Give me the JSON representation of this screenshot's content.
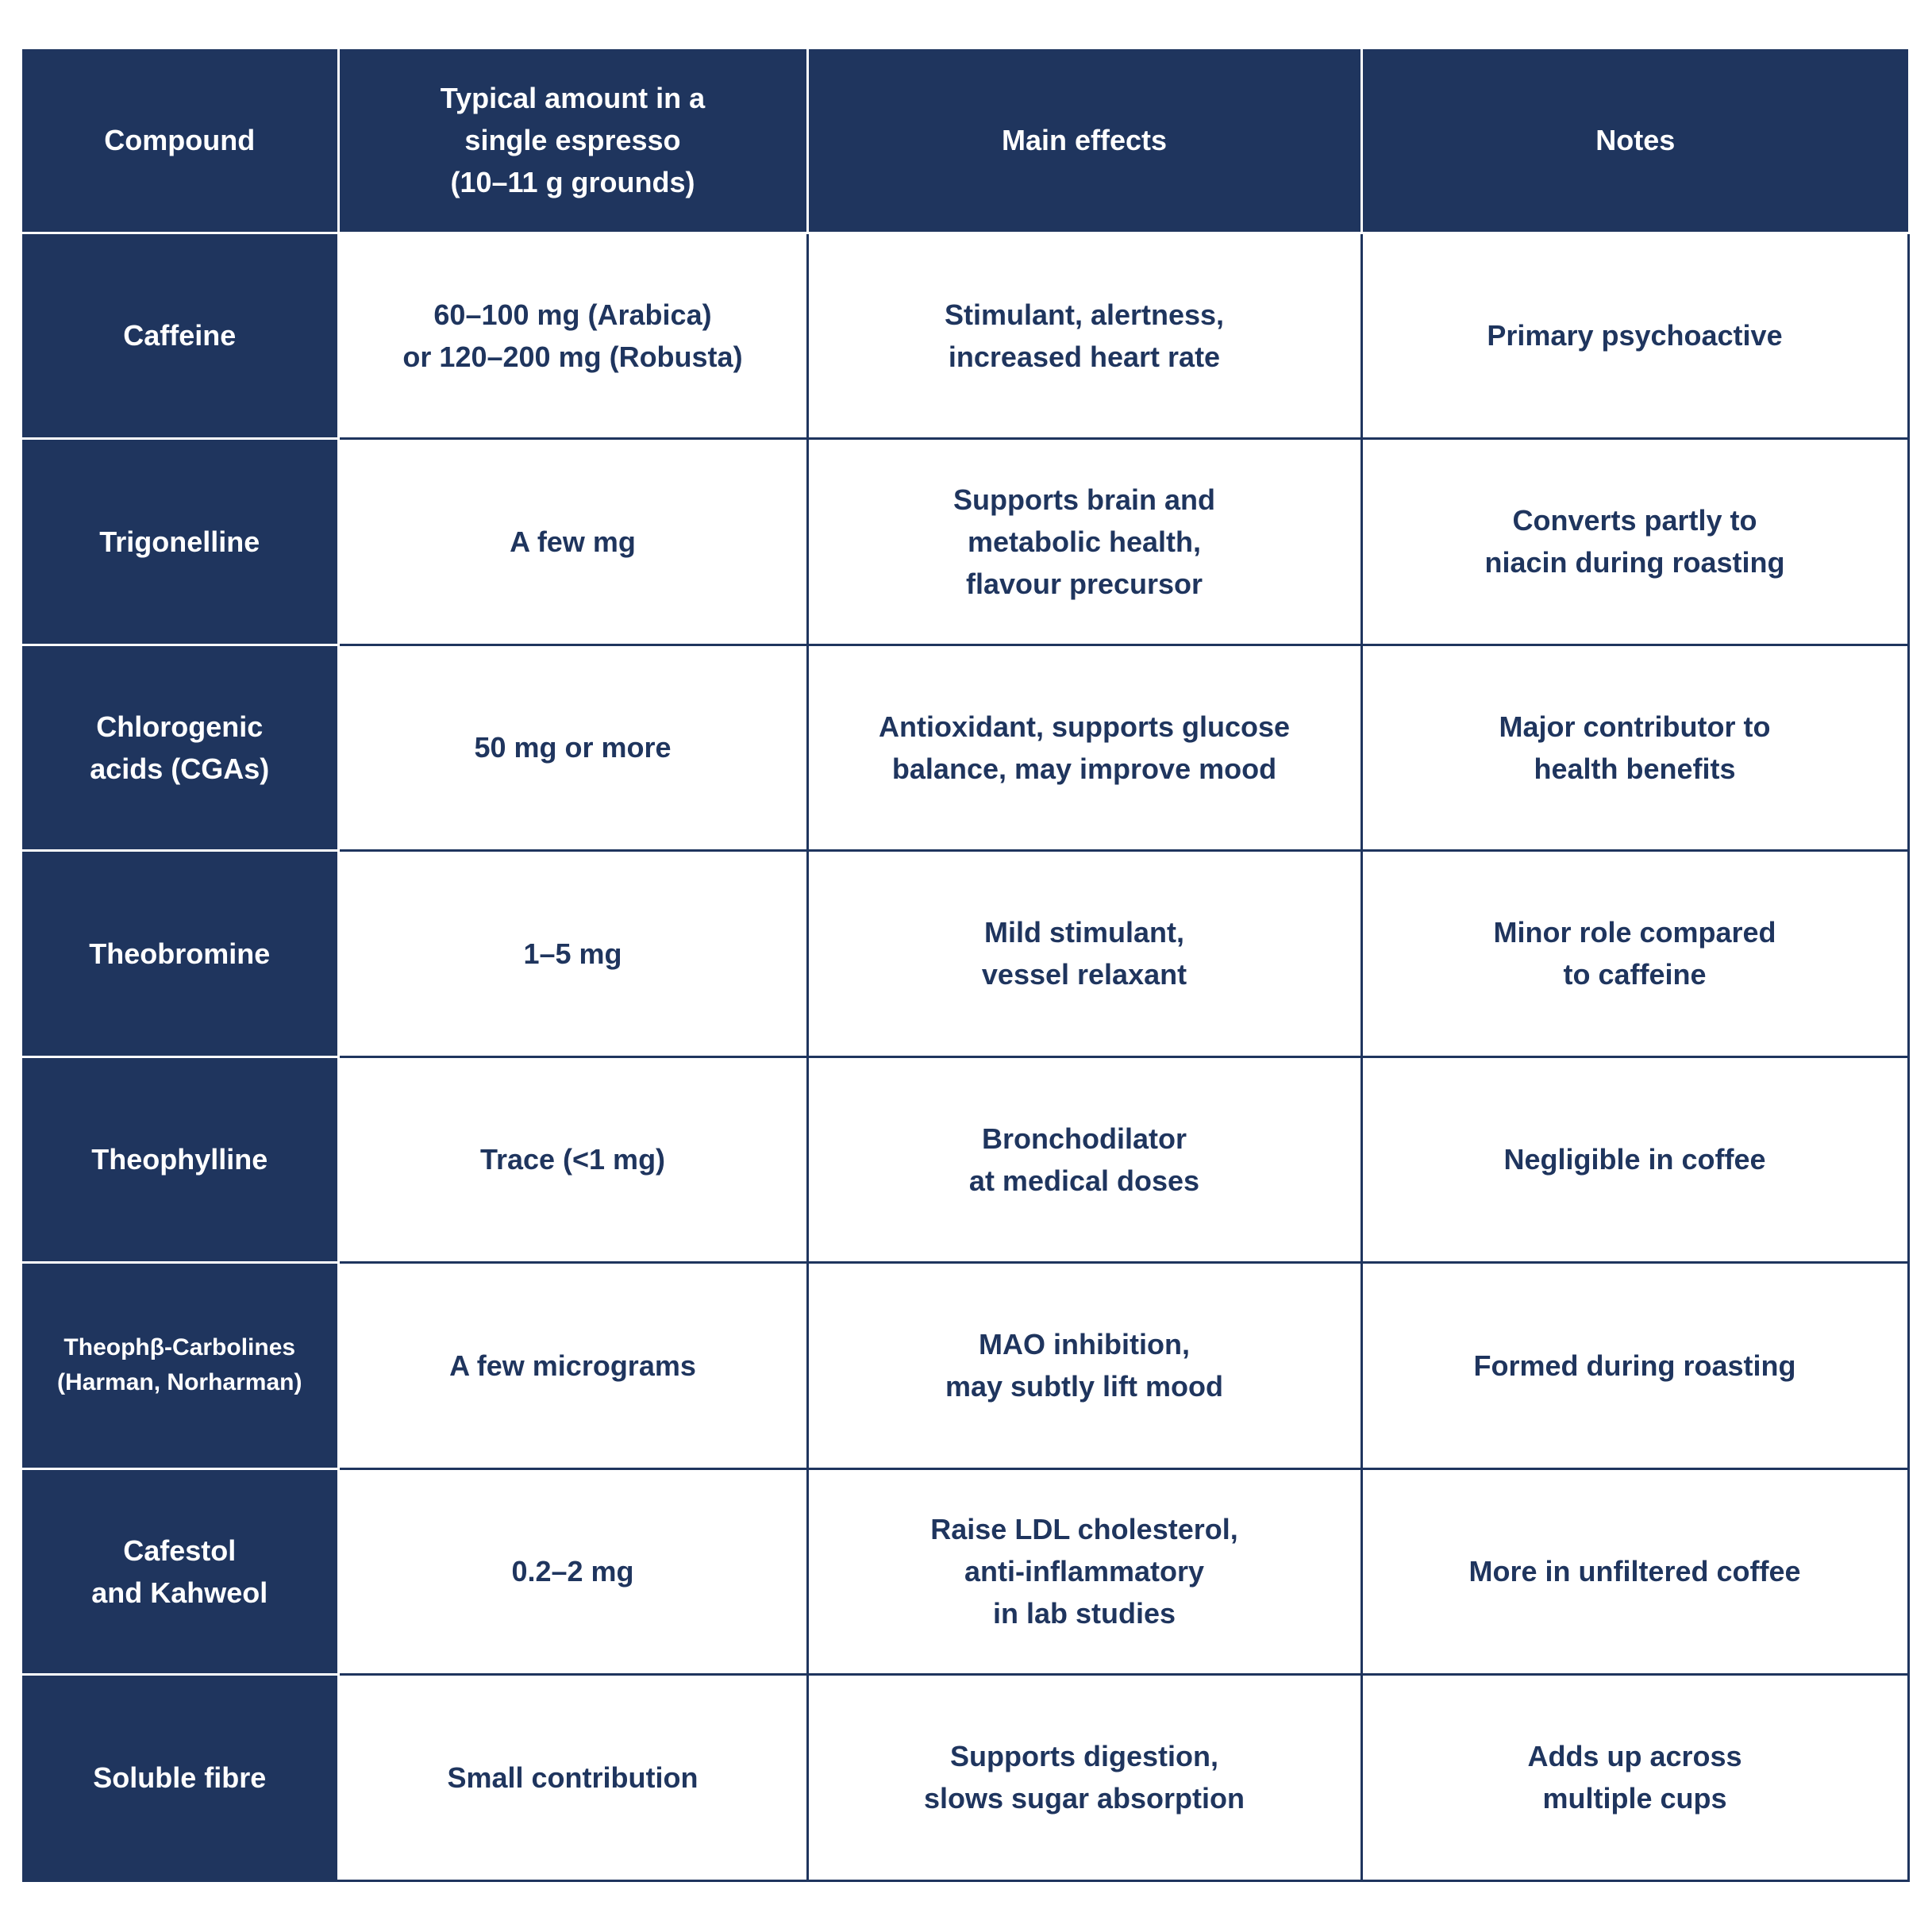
{
  "table": {
    "headers": [
      "Compound",
      "Typical amount in a\nsingle espresso\n(10–11 g grounds)",
      "Main effects",
      "Notes"
    ],
    "rows": [
      [
        "Caffeine",
        "60–100 mg (Arabica)\nor 120–200 mg (Robusta)",
        "Stimulant, alertness,\nincreased heart rate",
        "Primary psychoactive"
      ],
      [
        "Trigonelline",
        "A few mg",
        "Supports brain and\nmetabolic health,\nflavour precursor",
        "Converts partly to\nniacin during roasting"
      ],
      [
        "Chlorogenic\nacids (CGAs)",
        "50 mg or more",
        "Antioxidant, supports glucose\nbalance, may improve mood",
        "Major contributor to\nhealth benefits"
      ],
      [
        "Theobromine",
        "1–5 mg",
        "Mild stimulant,\nvessel relaxant",
        "Minor role compared\nto caffeine"
      ],
      [
        "Theophylline",
        "Trace (<1 mg)",
        "Bronchodilator\nat medical doses",
        "Negligible in coffee"
      ],
      [
        "Theophβ-Carbolines\n(Harman, Norharman)",
        "A few micrograms",
        "MAO inhibition,\nmay subtly lift mood",
        "Formed during roasting"
      ],
      [
        "Cafestol\nand Kahweol",
        "0.2–2 mg",
        "Raise LDL cholesterol,\nanti-inflammatory\nin lab studies",
        "More in unfiltered coffee"
      ],
      [
        "Soluble fibre",
        "Small contribution",
        "Supports digestion,\nslows sugar absorption",
        "Adds up across\nmultiple cups"
      ]
    ]
  },
  "colors": {
    "header_bg": "#1f355e",
    "text": "#1f355e",
    "header_text": "#ffffff"
  }
}
